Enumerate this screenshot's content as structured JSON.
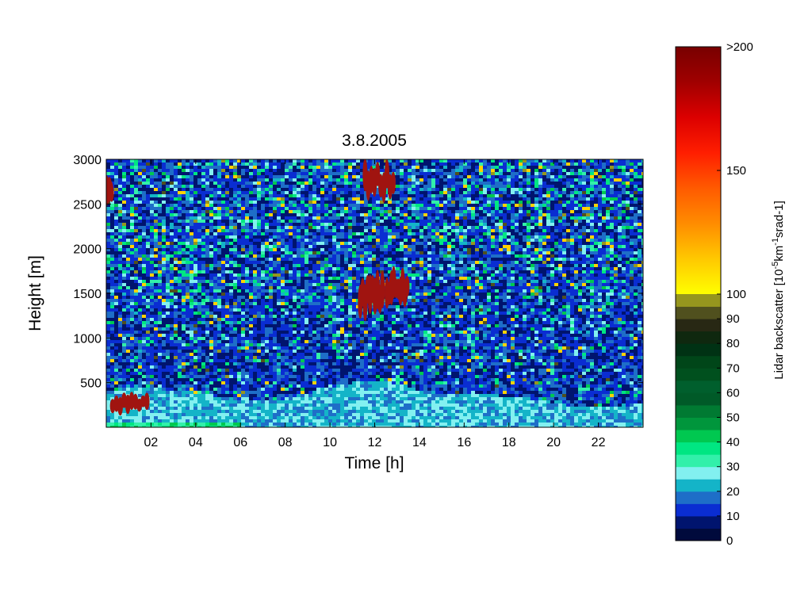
{
  "chart_data": {
    "type": "heatmap",
    "title": "3.8.2005",
    "xlabel": "Time [h]",
    "ylabel": "Height [m]",
    "xlim": [
      0,
      24
    ],
    "ylim": [
      0,
      3000
    ],
    "x_ticks": [
      {
        "value": 2,
        "label": "02"
      },
      {
        "value": 4,
        "label": "04"
      },
      {
        "value": 6,
        "label": "06"
      },
      {
        "value": 8,
        "label": "08"
      },
      {
        "value": 10,
        "label": "10"
      },
      {
        "value": 12,
        "label": "12"
      },
      {
        "value": 14,
        "label": "14"
      },
      {
        "value": 16,
        "label": "16"
      },
      {
        "value": 18,
        "label": "18"
      },
      {
        "value": 20,
        "label": "20"
      },
      {
        "value": 22,
        "label": "22"
      }
    ],
    "y_ticks": [
      {
        "value": 500,
        "label": "500"
      },
      {
        "value": 1000,
        "label": "1000"
      },
      {
        "value": 1500,
        "label": "1500"
      },
      {
        "value": 2000,
        "label": "2000"
      },
      {
        "value": 2500,
        "label": "2500"
      },
      {
        "value": 3000,
        "label": "3000"
      }
    ],
    "colorbar": {
      "label_main": "Lidar backscatter [10",
      "label_sup1": "-5",
      "label_mid": "km",
      "label_sup2": "-1",
      "label_end": "srad-1]",
      "ticks": [
        {
          "value": 0,
          "label": "0"
        },
        {
          "value": 10,
          "label": "10"
        },
        {
          "value": 20,
          "label": "20"
        },
        {
          "value": 30,
          "label": "30"
        },
        {
          "value": 40,
          "label": "40"
        },
        {
          "value": 50,
          "label": "50"
        },
        {
          "value": 60,
          "label": "60"
        },
        {
          "value": 70,
          "label": "70"
        },
        {
          "value": 80,
          "label": "80"
        },
        {
          "value": 90,
          "label": "90"
        },
        {
          "value": 100,
          "label": "100"
        },
        {
          "value": 150,
          "label": "150"
        },
        {
          "value": 200,
          "label": ">200"
        }
      ],
      "lower_bands": [
        {
          "from": 0,
          "to": 5,
          "color": "#000a3c"
        },
        {
          "from": 5,
          "to": 10,
          "color": "#00146e"
        },
        {
          "from": 10,
          "to": 15,
          "color": "#0a2dd2"
        },
        {
          "from": 15,
          "to": 20,
          "color": "#1e6ec8"
        },
        {
          "from": 20,
          "to": 25,
          "color": "#14b4c8"
        },
        {
          "from": 25,
          "to": 30,
          "color": "#82f0f0"
        },
        {
          "from": 30,
          "to": 35,
          "color": "#32f0aa"
        },
        {
          "from": 35,
          "to": 40,
          "color": "#00e682"
        },
        {
          "from": 40,
          "to": 45,
          "color": "#00c850"
        },
        {
          "from": 45,
          "to": 50,
          "color": "#00963c"
        },
        {
          "from": 50,
          "to": 55,
          "color": "#007a32"
        },
        {
          "from": 55,
          "to": 60,
          "color": "#005a28"
        },
        {
          "from": 60,
          "to": 65,
          "color": "#005f2d"
        },
        {
          "from": 65,
          "to": 70,
          "color": "#00501e"
        },
        {
          "from": 70,
          "to": 75,
          "color": "#004619"
        },
        {
          "from": 75,
          "to": 80,
          "color": "#003214"
        },
        {
          "from": 80,
          "to": 85,
          "color": "#0f280f"
        },
        {
          "from": 85,
          "to": 90,
          "color": "#282814"
        },
        {
          "from": 90,
          "to": 95,
          "color": "#50501e"
        },
        {
          "from": 95,
          "to": 100,
          "color": "#96961e"
        }
      ],
      "upper_gradient": [
        "#ffff00",
        "#ffc800",
        "#ff8c00",
        "#ff5a00",
        "#ff1e00",
        "#dc0000",
        "#a00000",
        "#780000"
      ]
    },
    "features": [
      {
        "name": "surface aerosol layer top",
        "time_h": [
          0,
          1,
          2,
          3,
          4,
          5,
          6,
          7,
          8,
          9,
          10,
          11,
          12,
          13,
          14,
          15,
          16,
          17,
          18,
          19,
          20,
          21,
          22,
          23,
          24
        ],
        "height_m": [
          420,
          430,
          440,
          420,
          390,
          350,
          300,
          300,
          320,
          380,
          450,
          500,
          520,
          490,
          420,
          380,
          370,
          360,
          350,
          320,
          280,
          230,
          220,
          240,
          260
        ]
      },
      {
        "name": "cloud",
        "time_h": [
          11.3,
          12.4
        ],
        "height_m": [
          1250,
          1700
        ]
      },
      {
        "name": "cloud",
        "time_h": [
          12.5,
          13.5
        ],
        "height_m": [
          1350,
          1750
        ]
      },
      {
        "name": "cloud",
        "time_h": [
          11.5,
          12.9
        ],
        "height_m": [
          2550,
          3000
        ]
      },
      {
        "name": "low cloud",
        "time_h": [
          0.2,
          1.9
        ],
        "height_m": [
          150,
          370
        ]
      },
      {
        "name": "cloud",
        "time_h": [
          0,
          0.25
        ],
        "height_m": [
          2500,
          2800
        ]
      }
    ]
  }
}
